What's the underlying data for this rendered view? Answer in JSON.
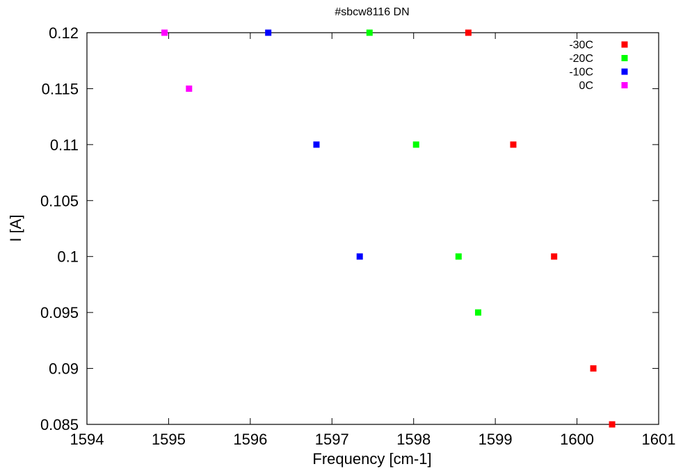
{
  "chart_data": {
    "type": "scatter",
    "title": "#sbcw8116 DN",
    "xlabel": "Frequency [cm-1]",
    "ylabel": "I [A]",
    "xlim": [
      1594,
      1601
    ],
    "ylim": [
      0.085,
      0.12
    ],
    "xticks": [
      1594,
      1595,
      1596,
      1597,
      1598,
      1599,
      1600,
      1601
    ],
    "yticks": [
      0.085,
      0.09,
      0.095,
      0.1,
      0.105,
      0.11,
      0.115,
      0.12
    ],
    "grid": false,
    "legend_position": "top-right",
    "series": [
      {
        "name": "-30C",
        "color": "#ff0000",
        "points": [
          {
            "x": 1598.67,
            "y": 0.12
          },
          {
            "x": 1599.22,
            "y": 0.11
          },
          {
            "x": 1599.72,
            "y": 0.1
          },
          {
            "x": 1600.2,
            "y": 0.09
          },
          {
            "x": 1600.43,
            "y": 0.085
          }
        ]
      },
      {
        "name": "-20C",
        "color": "#00ff00",
        "points": [
          {
            "x": 1597.46,
            "y": 0.12
          },
          {
            "x": 1598.03,
            "y": 0.11
          },
          {
            "x": 1598.55,
            "y": 0.1
          },
          {
            "x": 1598.79,
            "y": 0.095
          }
        ]
      },
      {
        "name": "-10C",
        "color": "#0000ff",
        "points": [
          {
            "x": 1596.22,
            "y": 0.12
          },
          {
            "x": 1596.81,
            "y": 0.11
          },
          {
            "x": 1597.34,
            "y": 0.1
          }
        ]
      },
      {
        "name": "0C",
        "color": "#ff00ff",
        "points": [
          {
            "x": 1594.95,
            "y": 0.12
          },
          {
            "x": 1595.25,
            "y": 0.115
          }
        ]
      }
    ]
  }
}
